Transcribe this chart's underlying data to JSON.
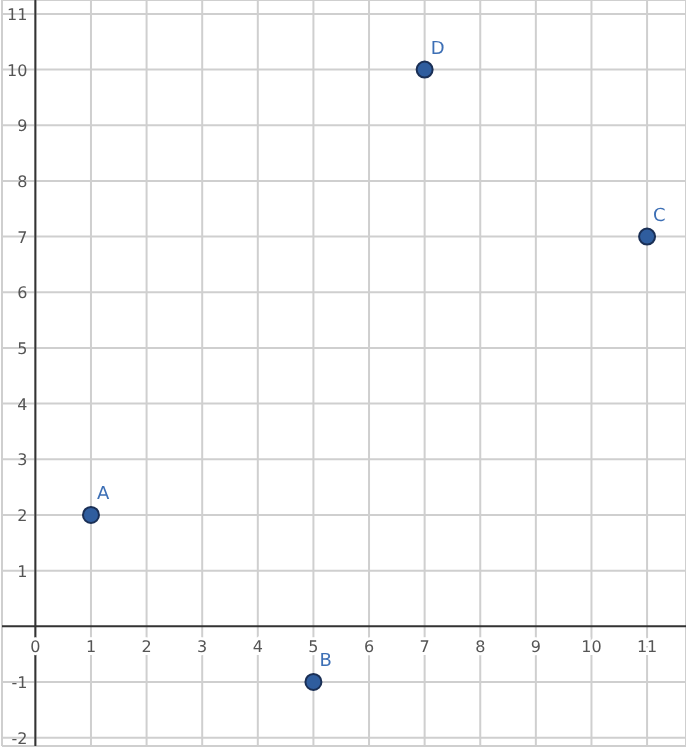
{
  "chart_data": {
    "type": "scatter",
    "x": [
      1,
      5,
      11,
      7
    ],
    "values": [
      2,
      -1,
      7,
      10
    ],
    "color": "#2f5d9e",
    "marker": "circle",
    "grid": true,
    "xlim": [
      -0.6,
      11.7
    ],
    "ylim": [
      -2.15,
      11.25
    ],
    "xticks": [
      0,
      1,
      2,
      3,
      4,
      5,
      6,
      7,
      8,
      9,
      10,
      11
    ],
    "yticks": [
      -2,
      -1,
      1,
      2,
      3,
      4,
      5,
      6,
      7,
      8,
      9,
      10,
      11
    ],
    "annotations": [
      {
        "text": "A",
        "x": 1,
        "y": 2
      },
      {
        "text": "B",
        "x": 5,
        "y": -1
      },
      {
        "text": "C",
        "x": 11,
        "y": 7
      },
      {
        "text": "D",
        "x": 7,
        "y": 10
      }
    ]
  }
}
